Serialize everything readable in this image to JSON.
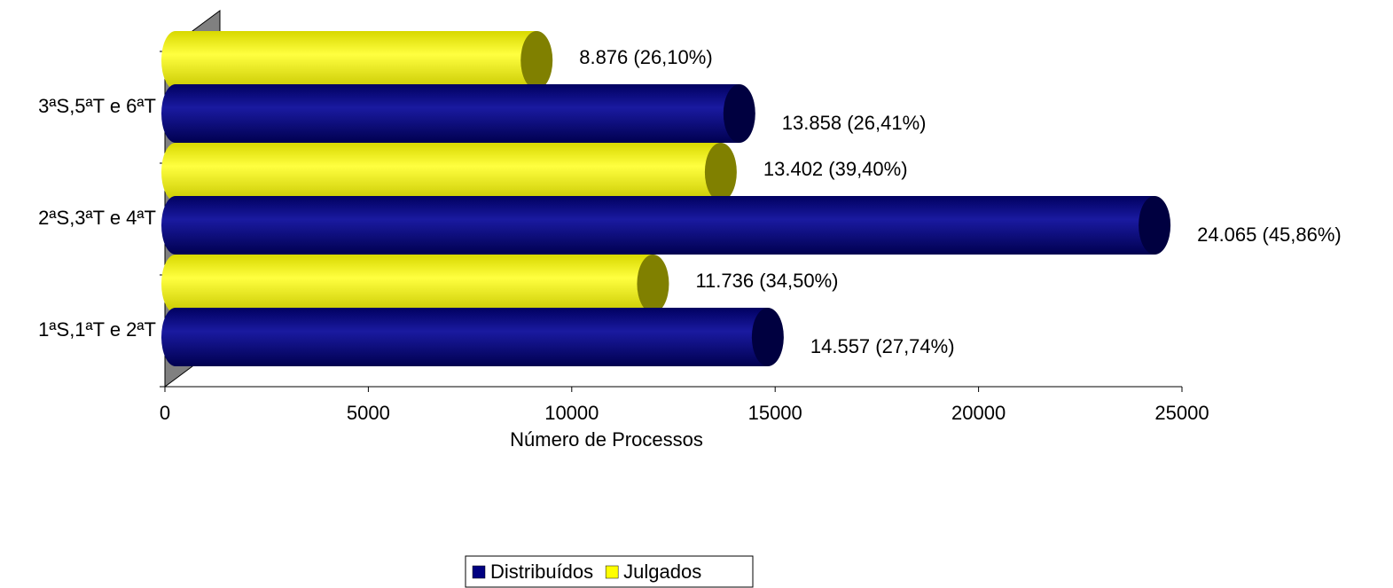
{
  "chart_data": {
    "type": "bar",
    "orientation": "horizontal",
    "categories": [
      "1ªS,1ªT e 2ªT",
      "2ªS,3ªT e 4ªT",
      "3ªS,5ªT e 6ªT"
    ],
    "series": [
      {
        "name": "Distribuídos",
        "color": "#000080",
        "values": [
          14557,
          24065,
          13858
        ],
        "value_labels": [
          "14.557 (27,74%)",
          "24.065 (45,86%)",
          "13.858 (26,41%)"
        ]
      },
      {
        "name": "Julgados",
        "color": "#ffff00",
        "values": [
          11736,
          13402,
          8876
        ],
        "value_labels": [
          "11.736 (34,50%)",
          "13.402 (39,40%)",
          "8.876 (26,10%)"
        ]
      }
    ],
    "xlim": [
      0,
      25000
    ],
    "xticks": [
      0,
      5000,
      10000,
      15000,
      20000,
      25000
    ],
    "xlabel": "Número de Processos",
    "legend": "bottom"
  }
}
